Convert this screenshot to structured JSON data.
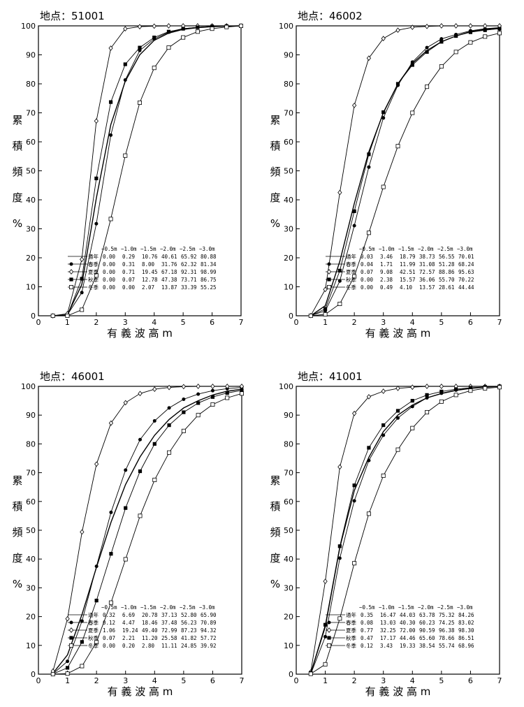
{
  "chart_data": [
    {
      "type": "line",
      "title": "地点：51001",
      "ylabel": [
        "累",
        "積",
        "頻",
        "度",
        "%"
      ],
      "xlabel": "有 義 波 高 m",
      "xlim": [
        0,
        7
      ],
      "ylim": [
        0,
        100
      ],
      "xticks": [
        "0",
        "1",
        "2",
        "3",
        "4",
        "5",
        "6",
        "7"
      ],
      "yticks": [
        "0",
        "10",
        "20",
        "30",
        "40",
        "50",
        "60",
        "70",
        "80",
        "90",
        "100"
      ],
      "table": {
        "header": [
          "~0.5m",
          "~1.0m",
          "~1.5m",
          "~2.0m",
          "~2.5m",
          "~3.0m"
        ],
        "rows": [
          {
            "label": "通年",
            "values": [
              "0.00",
              "0.29",
              "10.76",
              "40.61",
              "65.92",
              "80.88"
            ]
          },
          {
            "label": "春季",
            "values": [
              "0.00",
              "0.31",
              "8.00",
              "31.76",
              "62.32",
              "81.34"
            ]
          },
          {
            "label": "夏季",
            "values": [
              "0.00",
              "0.71",
              "19.45",
              "67.18",
              "92.31",
              "98.99"
            ]
          },
          {
            "label": "秋季",
            "values": [
              "0.00",
              "0.07",
              "12.78",
              "47.38",
              "73.71",
              "86.75"
            ]
          },
          {
            "label": "冬季",
            "values": [
              "0.00",
              "0.00",
              "2.07",
              "13.87",
              "33.39",
              "55.25"
            ]
          }
        ]
      },
      "series": [
        {
          "name": "通年",
          "marker": "none",
          "x": [
            0.5,
            1,
            1.5,
            2,
            2.5,
            3,
            3.5,
            4,
            4.5,
            5,
            5.5,
            6,
            6.5,
            7
          ],
          "y": [
            0,
            0.29,
            10.76,
            40.61,
            65.92,
            80.88,
            90,
            95,
            97.5,
            98.8,
            99.4,
            99.7,
            99.9,
            100
          ]
        },
        {
          "name": "春季",
          "marker": "dot",
          "x": [
            0.5,
            1,
            1.5,
            2,
            2.5,
            3,
            3.5,
            4,
            4.5,
            5,
            5.5,
            6,
            6.5,
            7
          ],
          "y": [
            0,
            0.31,
            8.0,
            31.76,
            62.32,
            81.34,
            91.5,
            95.5,
            97.8,
            99,
            99.5,
            99.8,
            99.9,
            100
          ]
        },
        {
          "name": "夏季",
          "marker": "diamond",
          "x": [
            0.5,
            1,
            1.5,
            2,
            2.5,
            3,
            3.5,
            4,
            4.5,
            5,
            5.5,
            6,
            6.5,
            7
          ],
          "y": [
            0,
            0.71,
            19.45,
            67.18,
            92.31,
            98.99,
            99.7,
            99.9,
            100,
            100,
            100,
            100,
            100,
            100
          ]
        },
        {
          "name": "秋季",
          "marker": "square",
          "x": [
            0.5,
            1,
            1.5,
            2,
            2.5,
            3,
            3.5,
            4,
            4.5,
            5,
            5.5,
            6,
            6.5,
            7
          ],
          "y": [
            0,
            0.07,
            12.78,
            47.38,
            73.71,
            86.75,
            92.5,
            96,
            98,
            99,
            99.5,
            99.8,
            99.9,
            100
          ]
        },
        {
          "name": "冬季",
          "marker": "open-square",
          "x": [
            0.5,
            1,
            1.5,
            2,
            2.5,
            3,
            3.5,
            4,
            4.5,
            5,
            5.5,
            6,
            6.5,
            7
          ],
          "y": [
            0,
            0,
            2.07,
            13.87,
            33.39,
            55.25,
            73.5,
            85.5,
            92.5,
            96,
            98,
            99,
            99.6,
            100
          ]
        }
      ]
    },
    {
      "type": "line",
      "title": "地点：46002",
      "ylabel": [
        "累",
        "積",
        "頻",
        "度",
        "%"
      ],
      "xlabel": "有 義 波 高 m",
      "xlim": [
        0,
        7
      ],
      "ylim": [
        0,
        100
      ],
      "xticks": [
        "0",
        "1",
        "2",
        "3",
        "4",
        "5",
        "6",
        "7"
      ],
      "yticks": [
        "0",
        "10",
        "20",
        "30",
        "40",
        "50",
        "60",
        "70",
        "80",
        "90",
        "100"
      ],
      "table": {
        "header": [
          "~0.5m",
          "~1.0m",
          "~1.5m",
          "~2.0m",
          "~2.5m",
          "~3.0m"
        ],
        "rows": [
          {
            "label": "通年",
            "values": [
              "0.03",
              "3.46",
              "18.79",
              "38.73",
              "56.55",
              "70.01"
            ]
          },
          {
            "label": "春季",
            "values": [
              "0.04",
              "1.71",
              "11.99",
              "31.08",
              "51.28",
              "68.24"
            ]
          },
          {
            "label": "夏季",
            "values": [
              "0.07",
              "9.08",
              "42.51",
              "72.57",
              "88.86",
              "95.63"
            ]
          },
          {
            "label": "秋季",
            "values": [
              "0.00",
              "2.38",
              "15.57",
              "36.06",
              "55.70",
              "70.22"
            ]
          },
          {
            "label": "冬季",
            "values": [
              "0.00",
              "0.49",
              "4.10",
              "13.57",
              "28.61",
              "44.44"
            ]
          }
        ]
      },
      "series": [
        {
          "name": "通年",
          "marker": "none",
          "x": [
            0.5,
            1,
            1.5,
            2,
            2.5,
            3,
            3.5,
            4,
            4.5,
            5,
            5.5,
            6,
            6.5,
            7
          ],
          "y": [
            0.03,
            3.46,
            18.79,
            38.73,
            56.55,
            70.01,
            80,
            87,
            91.5,
            94.5,
            96.5,
            98,
            98.8,
            99.3
          ]
        },
        {
          "name": "春季",
          "marker": "dot",
          "x": [
            0.5,
            1,
            1.5,
            2,
            2.5,
            3,
            3.5,
            4,
            4.5,
            5,
            5.5,
            6,
            6.5,
            7
          ],
          "y": [
            0.04,
            1.71,
            11.99,
            31.08,
            51.28,
            68.24,
            79.5,
            87.5,
            92.5,
            95.5,
            97,
            98.3,
            99,
            99.4
          ]
        },
        {
          "name": "夏季",
          "marker": "diamond",
          "x": [
            0.5,
            1,
            1.5,
            2,
            2.5,
            3,
            3.5,
            4,
            4.5,
            5,
            5.5,
            6,
            6.5,
            7
          ],
          "y": [
            0.07,
            9.08,
            42.51,
            72.57,
            88.86,
            95.63,
            98.5,
            99.5,
            99.8,
            100,
            100,
            100,
            100,
            100
          ]
        },
        {
          "name": "秋季",
          "marker": "square",
          "x": [
            0.5,
            1,
            1.5,
            2,
            2.5,
            3,
            3.5,
            4,
            4.5,
            5,
            5.5,
            6,
            6.5,
            7
          ],
          "y": [
            0,
            2.38,
            15.57,
            36.06,
            55.7,
            70.22,
            80,
            86.5,
            91,
            94.5,
            96.5,
            97.8,
            98.5,
            99
          ]
        },
        {
          "name": "冬季",
          "marker": "open-square",
          "x": [
            0.5,
            1,
            1.5,
            2,
            2.5,
            3,
            3.5,
            4,
            4.5,
            5,
            5.5,
            6,
            6.5,
            7
          ],
          "y": [
            0,
            0.49,
            4.1,
            13.57,
            28.61,
            44.44,
            58.5,
            70,
            79,
            86,
            91,
            94.3,
            96.3,
            97.5
          ]
        }
      ]
    },
    {
      "type": "line",
      "title": "地点：46001",
      "ylabel": [
        "累",
        "積",
        "頻",
        "度",
        "%"
      ],
      "xlabel": "有 義 波 高 m",
      "xlim": [
        0,
        7
      ],
      "ylim": [
        0,
        100
      ],
      "xticks": [
        "0",
        "1",
        "2",
        "3",
        "4",
        "5",
        "6",
        "7"
      ],
      "yticks": [
        "0",
        "10",
        "20",
        "30",
        "40",
        "50",
        "60",
        "70",
        "80",
        "90",
        "100"
      ],
      "table": {
        "header": [
          "~0.5m",
          "~1.0m",
          "~1.5m",
          "~2.0m",
          "~2.5m",
          "~3.0m"
        ],
        "rows": [
          {
            "label": "通年",
            "values": [
              "0.32",
              "6.69",
              "20.78",
              "37.13",
              "52.80",
              "65.90"
            ]
          },
          {
            "label": "春季",
            "values": [
              "0.12",
              "4.47",
              "18.46",
              "37.48",
              "56.23",
              "70.89"
            ]
          },
          {
            "label": "夏季",
            "values": [
              "1.06",
              "19.24",
              "49.40",
              "72.99",
              "87.23",
              "94.32"
            ]
          },
          {
            "label": "秋季",
            "values": [
              "0.07",
              "2.21",
              "11.20",
              "25.58",
              "41.82",
              "57.72"
            ]
          },
          {
            "label": "冬季",
            "values": [
              "0.00",
              "0.20",
              "2.80",
              "11.11",
              "24.85",
              "39.92"
            ]
          }
        ]
      },
      "series": [
        {
          "name": "通年",
          "marker": "none",
          "x": [
            0.5,
            1,
            1.5,
            2,
            2.5,
            3,
            3.5,
            4,
            4.5,
            5,
            5.5,
            6,
            6.5,
            7
          ],
          "y": [
            0.32,
            6.69,
            20.78,
            37.13,
            52.8,
            65.9,
            75.5,
            83,
            88.5,
            92.5,
            95,
            97,
            98.3,
            99
          ]
        },
        {
          "name": "春季",
          "marker": "dot",
          "x": [
            0.5,
            1,
            1.5,
            2,
            2.5,
            3,
            3.5,
            4,
            4.5,
            5,
            5.5,
            6,
            6.5,
            7
          ],
          "y": [
            0.12,
            4.47,
            18.46,
            37.48,
            56.23,
            70.89,
            81.5,
            88,
            92.5,
            95.5,
            97.3,
            98.5,
            99.2,
            99.6
          ]
        },
        {
          "name": "夏季",
          "marker": "diamond",
          "x": [
            0.5,
            1,
            1.5,
            2,
            2.5,
            3,
            3.5,
            4,
            4.5,
            5,
            5.5,
            6,
            6.5,
            7
          ],
          "y": [
            1.06,
            19.24,
            49.4,
            72.99,
            87.23,
            94.32,
            97.5,
            99,
            99.6,
            99.9,
            100,
            100,
            100,
            100
          ]
        },
        {
          "name": "秋季",
          "marker": "square",
          "x": [
            0.5,
            1,
            1.5,
            2,
            2.5,
            3,
            3.5,
            4,
            4.5,
            5,
            5.5,
            6,
            6.5,
            7
          ],
          "y": [
            0.07,
            2.21,
            11.2,
            25.58,
            41.82,
            57.72,
            70.5,
            80,
            86.5,
            91,
            94.2,
            96.3,
            97.7,
            98.6
          ]
        },
        {
          "name": "冬季",
          "marker": "open-square",
          "x": [
            0.5,
            1,
            1.5,
            2,
            2.5,
            3,
            3.5,
            4,
            4.5,
            5,
            5.5,
            6,
            6.5,
            7
          ],
          "y": [
            0,
            0.2,
            2.8,
            11.11,
            24.85,
            39.92,
            55,
            67.5,
            77,
            84.5,
            90,
            93.7,
            96,
            97.5
          ]
        }
      ]
    },
    {
      "type": "line",
      "title": "地点：41001",
      "ylabel": [
        "累",
        "積",
        "頻",
        "度",
        "%"
      ],
      "xlabel": "有 義 波 高 m",
      "xlim": [
        0,
        7
      ],
      "ylim": [
        0,
        100
      ],
      "xticks": [
        "0",
        "1",
        "2",
        "3",
        "4",
        "5",
        "6",
        "7"
      ],
      "yticks": [
        "0",
        "10",
        "20",
        "30",
        "40",
        "50",
        "60",
        "70",
        "80",
        "90",
        "100"
      ],
      "table": {
        "header": [
          "~0.5m",
          "~1.0m",
          "~1.5m",
          "~2.0m",
          "~2.5m",
          "~3.0m"
        ],
        "rows": [
          {
            "label": "通年",
            "values": [
              "0.35",
              "16.47",
              "44.03",
              "63.78",
              "75.32",
              "84.26"
            ]
          },
          {
            "label": "春季",
            "values": [
              "0.08",
              "13.03",
              "40.30",
              "60.23",
              "74.25",
              "83.02"
            ]
          },
          {
            "label": "夏季",
            "values": [
              "0.77",
              "32.25",
              "72.00",
              "90.59",
              "96.38",
              "98.30"
            ]
          },
          {
            "label": "秋季",
            "values": [
              "0.47",
              "17.17",
              "44.46",
              "65.60",
              "78.66",
              "86.51"
            ]
          },
          {
            "label": "冬季",
            "values": [
              "0.12",
              "3.43",
              "19.33",
              "38.54",
              "55.74",
              "68.96"
            ]
          }
        ]
      },
      "series": [
        {
          "name": "通年",
          "marker": "none",
          "x": [
            0.5,
            1,
            1.5,
            2,
            2.5,
            3,
            3.5,
            4,
            4.5,
            5,
            5.5,
            6,
            6.5,
            7
          ],
          "y": [
            0.35,
            16.47,
            44.03,
            63.78,
            75.32,
            84.26,
            90,
            93.5,
            96,
            97.5,
            98.6,
            99.3,
            99.7,
            100
          ]
        },
        {
          "name": "春季",
          "marker": "dot",
          "x": [
            0.5,
            1,
            1.5,
            2,
            2.5,
            3,
            3.5,
            4,
            4.5,
            5,
            5.5,
            6,
            6.5,
            7
          ],
          "y": [
            0.08,
            13.03,
            40.3,
            60.23,
            74.25,
            83.02,
            89,
            93,
            96,
            97.6,
            98.7,
            99.4,
            99.7,
            100
          ]
        },
        {
          "name": "夏季",
          "marker": "diamond",
          "x": [
            0.5,
            1,
            1.5,
            2,
            2.5,
            3,
            3.5,
            4,
            4.5,
            5,
            5.5,
            6,
            6.5,
            7
          ],
          "y": [
            0.77,
            32.25,
            72.0,
            90.59,
            96.38,
            98.3,
            99.3,
            99.7,
            100,
            100,
            100,
            100,
            100,
            100
          ]
        },
        {
          "name": "秋季",
          "marker": "square",
          "x": [
            0.5,
            1,
            1.5,
            2,
            2.5,
            3,
            3.5,
            4,
            4.5,
            5,
            5.5,
            6,
            6.5,
            7
          ],
          "y": [
            0.47,
            17.17,
            44.46,
            65.6,
            78.66,
            86.51,
            91.5,
            95,
            97,
            98.2,
            99,
            99.5,
            99.8,
            100
          ]
        },
        {
          "name": "冬季",
          "marker": "open-square",
          "x": [
            0.5,
            1,
            1.5,
            2,
            2.5,
            3,
            3.5,
            4,
            4.5,
            5,
            5.5,
            6,
            6.5,
            7
          ],
          "y": [
            0.12,
            3.43,
            19.33,
            38.54,
            55.74,
            68.96,
            78,
            85.5,
            91,
            94.7,
            97,
            98.5,
            99.3,
            99.7
          ]
        }
      ]
    }
  ]
}
